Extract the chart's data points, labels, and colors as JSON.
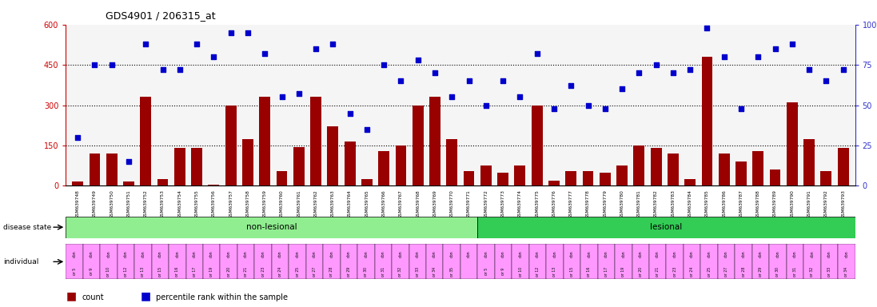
{
  "title": "GDS4901 / 206315_at",
  "samples": [
    "GSM639748",
    "GSM639749",
    "GSM639750",
    "GSM639751",
    "GSM639752",
    "GSM639753",
    "GSM639754",
    "GSM639755",
    "GSM639756",
    "GSM639757",
    "GSM639758",
    "GSM639759",
    "GSM639760",
    "GSM639761",
    "GSM639762",
    "GSM639763",
    "GSM639764",
    "GSM639765",
    "GSM639766",
    "GSM639767",
    "GSM639768",
    "GSM639769",
    "GSM639770",
    "GSM639771",
    "GSM639772",
    "GSM639773",
    "GSM639774",
    "GSM639775",
    "GSM639776",
    "GSM639777",
    "GSM639778",
    "GSM639779",
    "GSM639780",
    "GSM639781",
    "GSM639782",
    "GSM639783",
    "GSM639784",
    "GSM639785",
    "GSM639786",
    "GSM639787",
    "GSM639788",
    "GSM639789",
    "GSM639790",
    "GSM639791",
    "GSM639792",
    "GSM639793"
  ],
  "counts": [
    15,
    120,
    120,
    15,
    330,
    25,
    140,
    140,
    5,
    300,
    175,
    330,
    55,
    145,
    330,
    220,
    165,
    25,
    130,
    150,
    300,
    330,
    175,
    55,
    75,
    50,
    75,
    300,
    20,
    55,
    55,
    50,
    75,
    150,
    140,
    120,
    25,
    480,
    120,
    90,
    130,
    60,
    310,
    175,
    55,
    140
  ],
  "percentiles": [
    30,
    75,
    75,
    15,
    88,
    72,
    72,
    88,
    80,
    95,
    95,
    82,
    55,
    57,
    85,
    88,
    45,
    35,
    75,
    65,
    78,
    70,
    55,
    65,
    50,
    65,
    55,
    82,
    48,
    62,
    50,
    48,
    60,
    70,
    75,
    70,
    72,
    98,
    80,
    48,
    80,
    85,
    88,
    72,
    65,
    72
  ],
  "non_lesional_count": 24,
  "lesional_count": 22,
  "ind_top": [
    "don",
    "don",
    "don",
    "don",
    "don",
    "don",
    "don",
    "don",
    "don",
    "don",
    "don",
    "don",
    "don",
    "don",
    "don",
    "don",
    "don",
    "don",
    "don",
    "don",
    "don",
    "don",
    "don",
    "don",
    "don",
    "don",
    "don",
    "don",
    "don",
    "don",
    "don",
    "don",
    "don",
    "don",
    "don",
    "don",
    "don",
    "don",
    "don",
    "don",
    "don",
    "don",
    "don",
    "don",
    "don",
    "don"
  ],
  "ind_bot": [
    "or 5",
    "or 9",
    "or 10",
    "or 12",
    "or 13",
    "or 15",
    "or 16",
    "or 17",
    "or 19",
    "or 20",
    "or 21",
    "or 23",
    "or 24",
    "or 25",
    "or 27",
    "or 28",
    "or 29",
    "or 30",
    "or 31",
    "or 32",
    "or 33",
    "or 34",
    "or 35",
    "",
    "or 5",
    "or 9",
    "or 10",
    "or 12",
    "or 13",
    "or 15",
    "or 16",
    "or 17",
    "or 19",
    "or 20",
    "or 21",
    "or 23",
    "or 24",
    "or 25",
    "or 27",
    "or 28",
    "or 29",
    "or 30",
    "or 31",
    "or 32",
    "or 33",
    "or 34"
  ],
  "ylim_left": [
    0,
    600
  ],
  "ylim_right": [
    0,
    100
  ],
  "yticks_left": [
    0,
    150,
    300,
    450,
    600
  ],
  "yticks_right": [
    0,
    25,
    50,
    75,
    100
  ],
  "grid_values": [
    150,
    300,
    450
  ],
  "bar_color": "#990000",
  "dot_color": "#0000cc",
  "non_lesional_color": "#90EE90",
  "lesional_color": "#33CC55",
  "individual_color": "#FF99FF",
  "bg_color": "#ffffff",
  "axis_left_color": "#cc0000",
  "axis_right_color": "#3333cc",
  "legend_count_label": "count",
  "legend_pct_label": "percentile rank within the sample"
}
